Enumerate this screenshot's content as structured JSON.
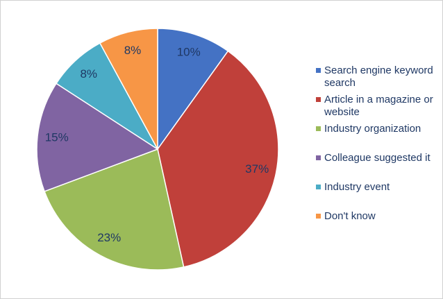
{
  "chart_data": {
    "type": "pie",
    "categories": [
      "Search engine keyword search",
      "Article in a magazine or website",
      "Industry organization",
      "Colleague suggested it",
      "Industry event",
      "Don't know"
    ],
    "values": [
      10,
      37,
      23,
      15,
      8,
      8
    ],
    "value_labels": [
      "10%",
      "37%",
      "23%",
      "15%",
      "8%",
      "8%"
    ],
    "colors": [
      "#4472c4",
      "#c0403a",
      "#9bbb59",
      "#8064a2",
      "#4bacc6",
      "#f79646"
    ],
    "legend": "right"
  }
}
